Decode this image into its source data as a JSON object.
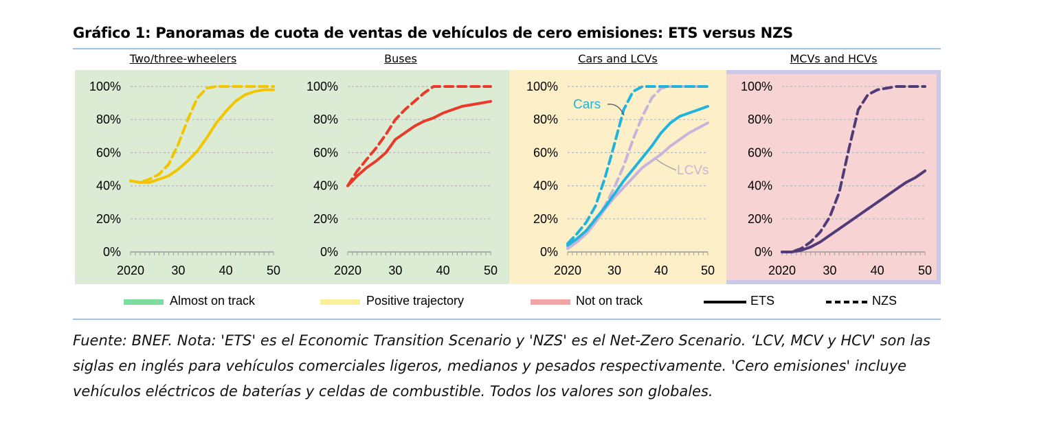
{
  "title": "Gráfico 1: Panoramas de cuota de ventas de vehículos de cero emisiones: ETS versus NZS",
  "source_note": "Fuente: BNEF. Nota: 'ETS' es el Economic Transition Scenario y 'NZS' es el Net-Zero Scenario. ‘LCV, MCV y HCV' son las siglas en inglés para vehículos comerciales ligeros, medianos y pesados respectivamente. 'Cero emisiones' incluye vehículos eléctricos de baterías y celdas de combustible. Todos los valores son globales.",
  "legend": [
    {
      "label": "Almost on track",
      "kind": "swatch",
      "color": "#7fdc9f"
    },
    {
      "label": "Positive trajectory",
      "kind": "swatch",
      "color": "#fbf09a"
    },
    {
      "label": "Not on track",
      "kind": "swatch",
      "color": "#f2a6a6"
    },
    {
      "label": "ETS",
      "kind": "solid",
      "color": "#000000"
    },
    {
      "label": "NZS",
      "kind": "dashed",
      "color": "#000000"
    }
  ],
  "colors": {
    "almost_on_track_bg": "#dcebd3",
    "positive_trajectory_bg": "#fdf0c8",
    "not_on_track_bg": "#f8d3d3",
    "two_three_wheelers": "#f2c500",
    "buses": "#e8392a",
    "cars": "#1fb3de",
    "lcvs": "#c7b4dc",
    "mcvs_hcvs": "#4e3b78"
  },
  "chart_data": [
    {
      "type": "line",
      "title": "Two/three-wheelers",
      "status": "Almost on track",
      "x_tick_labels": [
        "2020",
        "30",
        "40",
        "50"
      ],
      "y_tick_labels": [
        "0%",
        "20%",
        "40%",
        "60%",
        "80%",
        "100%"
      ],
      "xlim": [
        2020,
        2050
      ],
      "ylim": [
        0,
        100
      ],
      "series": [
        {
          "scenario": "ETS",
          "color": "two_three_wheelers",
          "x": [
            2020,
            2022,
            2024,
            2026,
            2028,
            2030,
            2032,
            2034,
            2036,
            2038,
            2040,
            2042,
            2044,
            2046,
            2048,
            2050
          ],
          "values": [
            43,
            42,
            42,
            44,
            46,
            50,
            55,
            61,
            69,
            78,
            85,
            91,
            95,
            97,
            98,
            98
          ]
        },
        {
          "scenario": "NZS",
          "color": "two_three_wheelers",
          "x": [
            2020,
            2022,
            2024,
            2026,
            2028,
            2030,
            2032,
            2034,
            2036,
            2038,
            2040,
            2042,
            2044,
            2046,
            2048,
            2050
          ],
          "values": [
            43,
            42,
            44,
            47,
            53,
            65,
            80,
            93,
            99,
            100,
            100,
            100,
            100,
            100,
            100,
            100
          ]
        }
      ]
    },
    {
      "type": "line",
      "title": "Buses",
      "status": "Almost on track",
      "x_tick_labels": [
        "2020",
        "30",
        "40",
        "50"
      ],
      "y_tick_labels": [
        "0%",
        "20%",
        "40%",
        "60%",
        "80%",
        "100%"
      ],
      "xlim": [
        2020,
        2050
      ],
      "ylim": [
        0,
        100
      ],
      "series": [
        {
          "scenario": "ETS",
          "color": "buses",
          "x": [
            2020,
            2022,
            2024,
            2026,
            2028,
            2030,
            2032,
            2034,
            2036,
            2038,
            2040,
            2042,
            2044,
            2046,
            2048,
            2050
          ],
          "values": [
            40,
            46,
            51,
            55,
            60,
            68,
            72,
            76,
            79,
            81,
            84,
            86,
            88,
            89,
            90,
            91
          ]
        },
        {
          "scenario": "NZS",
          "color": "buses",
          "x": [
            2020,
            2022,
            2024,
            2026,
            2028,
            2030,
            2032,
            2034,
            2036,
            2038,
            2040,
            2042,
            2044,
            2046,
            2048,
            2050
          ],
          "values": [
            40,
            49,
            56,
            63,
            71,
            80,
            86,
            91,
            96,
            100,
            100,
            100,
            100,
            100,
            100,
            100
          ]
        }
      ]
    },
    {
      "type": "line",
      "title": "Cars and LCVs",
      "status": "Positive trajectory",
      "x_tick_labels": [
        "2020",
        "30",
        "40",
        "50"
      ],
      "y_tick_labels": [
        "0%",
        "20%",
        "40%",
        "60%",
        "80%",
        "100%"
      ],
      "xlim": [
        2020,
        2050
      ],
      "ylim": [
        0,
        100
      ],
      "annotations": [
        "Cars",
        "LCVs"
      ],
      "series": [
        {
          "name": "Cars",
          "scenario": "ETS",
          "color": "cars",
          "x": [
            2020,
            2022,
            2024,
            2026,
            2028,
            2030,
            2032,
            2034,
            2036,
            2038,
            2040,
            2042,
            2044,
            2046,
            2048,
            2050
          ],
          "values": [
            4,
            8,
            13,
            20,
            27,
            35,
            43,
            50,
            57,
            64,
            72,
            78,
            82,
            84,
            86,
            88
          ]
        },
        {
          "name": "Cars",
          "scenario": "NZS",
          "color": "cars",
          "x": [
            2020,
            2022,
            2024,
            2026,
            2028,
            2030,
            2032,
            2034,
            2036,
            2038,
            2040,
            2042,
            2044,
            2046,
            2048,
            2050
          ],
          "values": [
            5,
            11,
            18,
            28,
            45,
            65,
            86,
            97,
            100,
            100,
            100,
            100,
            100,
            100,
            100,
            100
          ]
        },
        {
          "name": "LCVs",
          "scenario": "ETS",
          "color": "lcvs",
          "x": [
            2020,
            2022,
            2024,
            2026,
            2028,
            2030,
            2032,
            2034,
            2036,
            2038,
            2040,
            2042,
            2044,
            2046,
            2048,
            2050
          ],
          "values": [
            2,
            6,
            11,
            18,
            26,
            33,
            39,
            45,
            51,
            55,
            59,
            64,
            68,
            72,
            75,
            78
          ]
        },
        {
          "name": "LCVs",
          "scenario": "NZS",
          "color": "lcvs",
          "x": [
            2020,
            2022,
            2024,
            2026,
            2028,
            2030,
            2032,
            2034,
            2036,
            2038,
            2040,
            2042,
            2044,
            2046,
            2048,
            2050
          ],
          "values": [
            3,
            7,
            12,
            19,
            28,
            39,
            52,
            68,
            82,
            93,
            99,
            100,
            100,
            100,
            100,
            100
          ]
        }
      ]
    },
    {
      "type": "line",
      "title": "MCVs and HCVs",
      "status": "Not on track",
      "x_tick_labels": [
        "2020",
        "30",
        "40",
        "50"
      ],
      "y_tick_labels": [
        "0%",
        "20%",
        "40%",
        "60%",
        "80%",
        "100%"
      ],
      "xlim": [
        2020,
        2050
      ],
      "ylim": [
        0,
        100
      ],
      "series": [
        {
          "scenario": "ETS",
          "color": "mcvs_hcvs",
          "x": [
            2020,
            2022,
            2024,
            2026,
            2028,
            2030,
            2032,
            2034,
            2036,
            2038,
            2040,
            2042,
            2044,
            2046,
            2048,
            2050
          ],
          "values": [
            0,
            0,
            1,
            3,
            6,
            10,
            14,
            18,
            22,
            26,
            30,
            34,
            38,
            42,
            45,
            49
          ]
        },
        {
          "scenario": "NZS",
          "color": "mcvs_hcvs",
          "x": [
            2020,
            2022,
            2024,
            2026,
            2028,
            2030,
            2032,
            2034,
            2036,
            2038,
            2040,
            2042,
            2044,
            2046,
            2048,
            2050
          ],
          "values": [
            0,
            0,
            2,
            6,
            12,
            21,
            36,
            62,
            86,
            95,
            98,
            99,
            100,
            100,
            100,
            100
          ]
        }
      ]
    }
  ]
}
